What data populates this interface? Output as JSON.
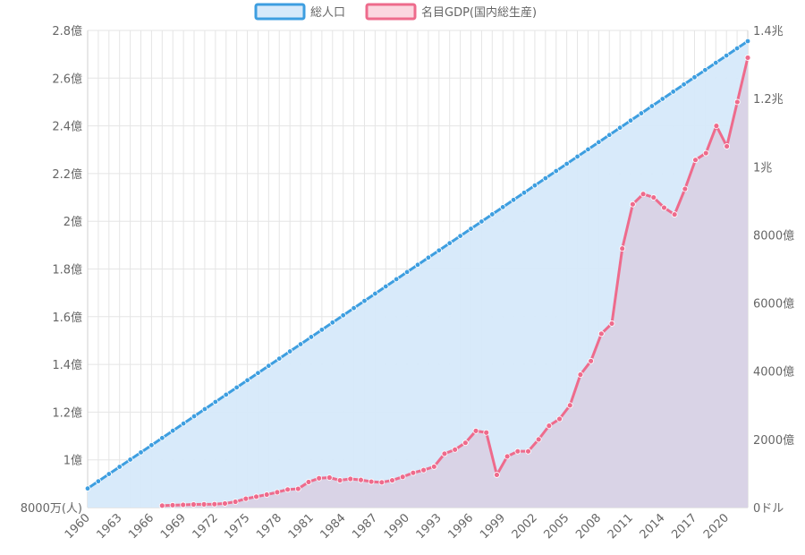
{
  "chart_data": {
    "type": "line",
    "legend": {
      "position": "top",
      "items": [
        {
          "label": "総人口",
          "stroke": "#3d9ee0",
          "fill": "#d6e9fa"
        },
        {
          "label": "名目GDP(国内総生産)",
          "stroke": "#ee6b8c",
          "fill": "#fbd7e0"
        }
      ]
    },
    "x_tick_labels": [
      "1960",
      "1963",
      "1966",
      "1969",
      "1972",
      "1975",
      "1978",
      "1981",
      "1984",
      "1987",
      "1990",
      "1993",
      "1996",
      "1999",
      "2002",
      "2005",
      "2008",
      "2011",
      "2014",
      "2017",
      "2020"
    ],
    "y_left": {
      "min": 80000000,
      "max": 280000000,
      "tick_values": [
        80000000,
        100000000,
        120000000,
        140000000,
        160000000,
        180000000,
        200000000,
        220000000,
        240000000,
        260000000,
        280000000
      ],
      "tick_labels": [
        "8000万(人)",
        "1億",
        "1.2億",
        "1.4億",
        "1.6億",
        "1.8億",
        "2億",
        "2.2億",
        "2.4億",
        "2.6億",
        "2.8億"
      ]
    },
    "y_right": {
      "min": 0,
      "max": 1400000000000,
      "tick_values": [
        0,
        200000000000,
        400000000000,
        600000000000,
        800000000000,
        1000000000000,
        1200000000000,
        1400000000000
      ],
      "tick_labels": [
        "0ドル",
        "2000億",
        "4000億",
        "6000億",
        "8000億",
        "1兆",
        "1.2兆",
        "1.4兆"
      ]
    },
    "grid": true,
    "series": [
      {
        "name": "総人口",
        "axis": "left",
        "color": "#3d9ee0",
        "fill": "#d6e9fa",
        "start_year": 1960,
        "end_year": 2022,
        "start_value": 88000000,
        "end_value": 275500000,
        "note_shape": "near-linear growth, annual points"
      },
      {
        "name": "名目GDP(国内総生産)",
        "axis": "right",
        "color": "#ee6b8c",
        "fill": "#d9d3e6",
        "points": [
          [
            1967,
            5700000000.0
          ],
          [
            1968,
            7000000000.0
          ],
          [
            1969,
            8000000000.0
          ],
          [
            1970,
            9200000000.0
          ],
          [
            1971,
            9500000000.0
          ],
          [
            1972,
            10000000000.0
          ],
          [
            1973,
            12000000000.0
          ],
          [
            1974,
            17000000000.0
          ],
          [
            1975,
            26000000000.0
          ],
          [
            1976,
            32000000000.0
          ],
          [
            1977,
            38000000000.0
          ],
          [
            1978,
            45000000000.0
          ],
          [
            1979,
            53000000000.0
          ],
          [
            1980,
            55000000000.0
          ],
          [
            1981,
            75000000000.0
          ],
          [
            1982,
            86000000000.0
          ],
          [
            1983,
            88000000000.0
          ],
          [
            1984,
            80000000000.0
          ],
          [
            1985,
            84000000000.0
          ],
          [
            1986,
            81000000000.0
          ],
          [
            1987,
            76000000000.0
          ],
          [
            1988,
            74000000000.0
          ],
          [
            1989,
            80000000000.0
          ],
          [
            1990,
            90000000000.0
          ],
          [
            1991,
            102000000000.0
          ],
          [
            1992,
            110000000000.0
          ],
          [
            1993,
            120000000000.0
          ],
          [
            1994,
            158000000000.0
          ],
          [
            1995,
            170000000000.0
          ],
          [
            1996,
            190000000000.0
          ],
          [
            1997,
            225000000000.0
          ],
          [
            1998,
            220000000000.0
          ],
          [
            1999,
            96000000000.0
          ],
          [
            2000,
            150000000000.0
          ],
          [
            2001,
            165000000000.0
          ],
          [
            2002,
            165000000000.0
          ],
          [
            2003,
            200000000000.0
          ],
          [
            2004,
            240000000000.0
          ],
          [
            2005,
            260000000000.0
          ],
          [
            2006,
            300000000000.0
          ],
          [
            2007,
            390000000000.0
          ],
          [
            2008,
            430000000000.0
          ],
          [
            2009,
            510000000000.0
          ],
          [
            2010,
            540000000000.0
          ],
          [
            2011,
            760000000000.0
          ],
          [
            2012,
            890000000000.0
          ],
          [
            2013,
            920000000000.0
          ],
          [
            2014,
            910000000000.0
          ],
          [
            2015,
            880000000000.0
          ],
          [
            2016,
            860000000000.0
          ],
          [
            2017,
            935000000000.0
          ],
          [
            2018,
            1020000000000.0
          ],
          [
            2019,
            1040000000000.0
          ],
          [
            2020,
            1120000000000.0
          ],
          [
            2021,
            1060000000000.0
          ],
          [
            2022,
            1190000000000.0
          ],
          [
            2023,
            1320000000000.0
          ]
        ]
      }
    ],
    "x_year_min": 1960,
    "x_year_max": 2022
  }
}
